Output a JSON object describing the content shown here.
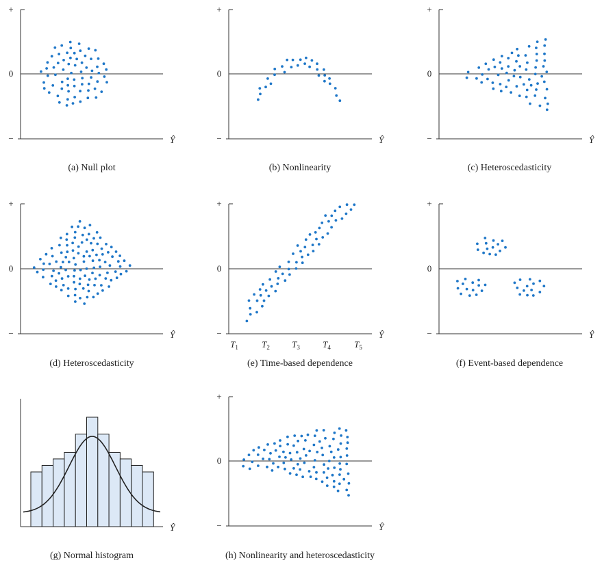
{
  "figure": {
    "y_tick_labels": {
      "plus": "+",
      "zero": "0",
      "minus": "−"
    },
    "x_axis_label": "Ŷ",
    "dot_color": "#1f77c8",
    "bar_fill": "#dce8f6",
    "bar_stroke": "#222222",
    "curve_color": "#222222"
  },
  "chart_data": [
    {
      "id": "a",
      "type": "scatter",
      "caption": "(a) Null plot",
      "xlim": [
        0,
        1
      ],
      "ylim": [
        -1,
        1
      ],
      "grid": false,
      "pattern": "null",
      "points": 150
    },
    {
      "id": "b",
      "type": "scatter",
      "caption": "(b) Nonlinearity",
      "xlim": [
        0,
        1
      ],
      "ylim": [
        -1,
        1
      ],
      "grid": false,
      "pattern": "nonlinear-arch",
      "points": 70
    },
    {
      "id": "c",
      "type": "scatter",
      "caption": "(c) Heteroscedasticity",
      "xlim": [
        0,
        1
      ],
      "ylim": [
        -1,
        1
      ],
      "grid": false,
      "pattern": "fan-widening",
      "points": 95
    },
    {
      "id": "d",
      "type": "scatter",
      "caption": "(d) Heteroscedasticity",
      "xlim": [
        0,
        1
      ],
      "ylim": [
        -1,
        1
      ],
      "grid": false,
      "pattern": "diamond",
      "points": 210
    },
    {
      "id": "e",
      "type": "scatter",
      "caption": "(e) Time-based dependence",
      "xlim": [
        0,
        1
      ],
      "ylim": [
        -1,
        1
      ],
      "grid": false,
      "pattern": "linear-trend",
      "points": 150,
      "x_ticks": [
        {
          "base": "T",
          "sub": "1"
        },
        {
          "base": "T",
          "sub": "2"
        },
        {
          "base": "T",
          "sub": "3"
        },
        {
          "base": "T",
          "sub": "4"
        },
        {
          "base": "T",
          "sub": "5"
        }
      ]
    },
    {
      "id": "f",
      "type": "scatter",
      "caption": "(f) Event-based dependence",
      "xlim": [
        0,
        1
      ],
      "ylim": [
        -1,
        1
      ],
      "grid": false,
      "pattern": "three-clusters",
      "points": 75
    },
    {
      "id": "g",
      "type": "bar",
      "caption": "(g) Normal histogram",
      "values": [
        4.2,
        4.7,
        5.2,
        5.7,
        7.1,
        8.4,
        7.1,
        5.7,
        5.2,
        4.7,
        4.2
      ],
      "overlay": "normal-curve",
      "grid": false
    },
    {
      "id": "h",
      "type": "scatter",
      "caption": "(h) Nonlinearity and heteroscedasticity",
      "xlim": [
        0,
        1
      ],
      "ylim": [
        -1,
        1
      ],
      "grid": false,
      "pattern": "nonlinear-fan",
      "points": 150
    }
  ]
}
